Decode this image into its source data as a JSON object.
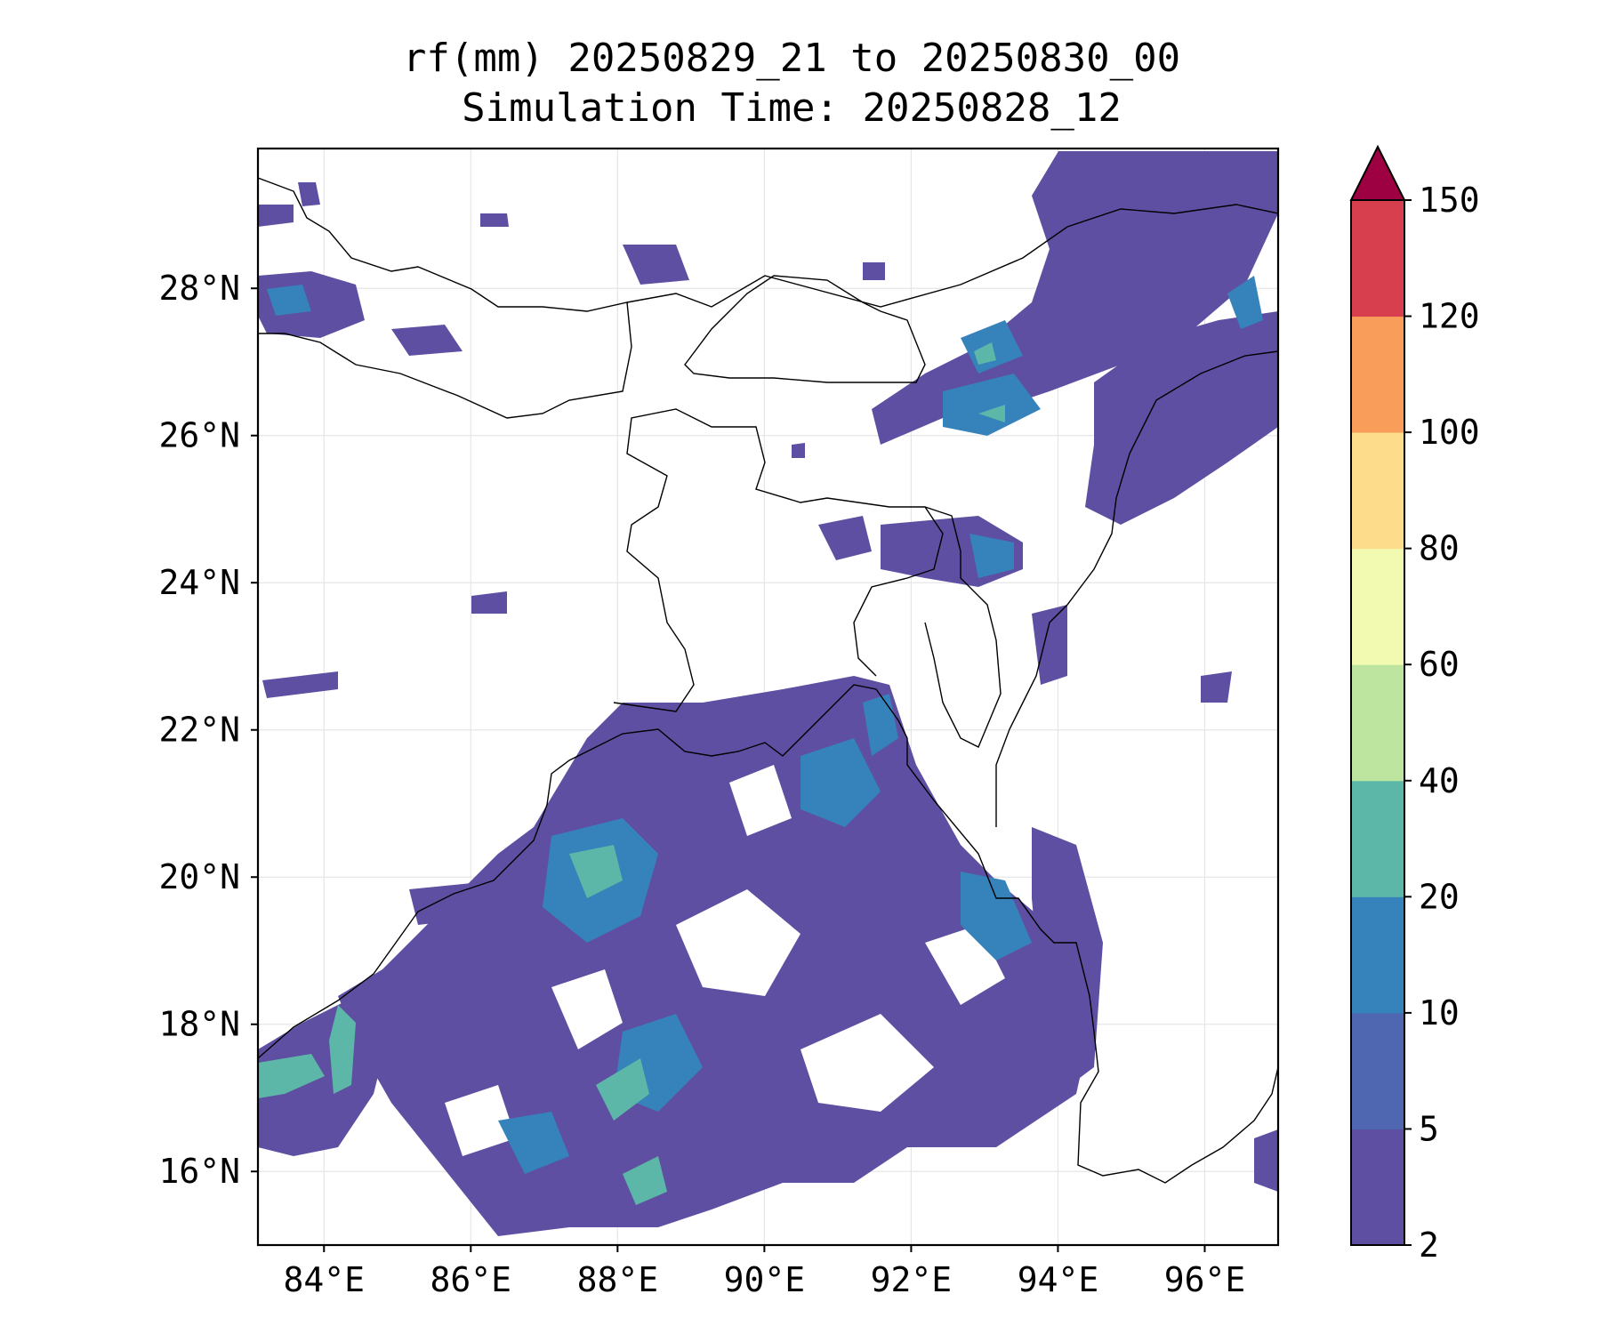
{
  "title": {
    "line1": "rf(mm) 20250829_21 to 20250830_00",
    "line2": "Simulation Time: 20250828_12"
  },
  "map": {
    "lon_range": [
      83.1,
      97.0
    ],
    "lat_range": [
      15.0,
      29.9
    ],
    "lon_ticks": [
      84,
      86,
      88,
      90,
      92,
      94,
      96
    ],
    "lat_ticks": [
      16,
      18,
      20,
      22,
      24,
      26,
      28
    ],
    "lon_tick_labels": [
      "84°E",
      "86°E",
      "88°E",
      "90°E",
      "92°E",
      "94°E",
      "96°E"
    ],
    "lat_tick_labels": [
      "16°N",
      "18°N",
      "20°N",
      "22°N",
      "24°N",
      "26°N",
      "28°N"
    ],
    "gridlines": true
  },
  "colorbar": {
    "levels": [
      2,
      5,
      10,
      20,
      40,
      60,
      80,
      100,
      120,
      150
    ],
    "level_labels": [
      "2",
      "5",
      "10",
      "20",
      "40",
      "60",
      "80",
      "100",
      "120",
      "150"
    ],
    "colors": [
      "#5e4fa2",
      "#4e67b0",
      "#3682ba",
      "#5db7a9",
      "#bde5a0",
      "#f2f9b0",
      "#fddd8b",
      "#f99d5a",
      "#d73f4f",
      "#9e0142"
    ],
    "extend": "max"
  }
}
